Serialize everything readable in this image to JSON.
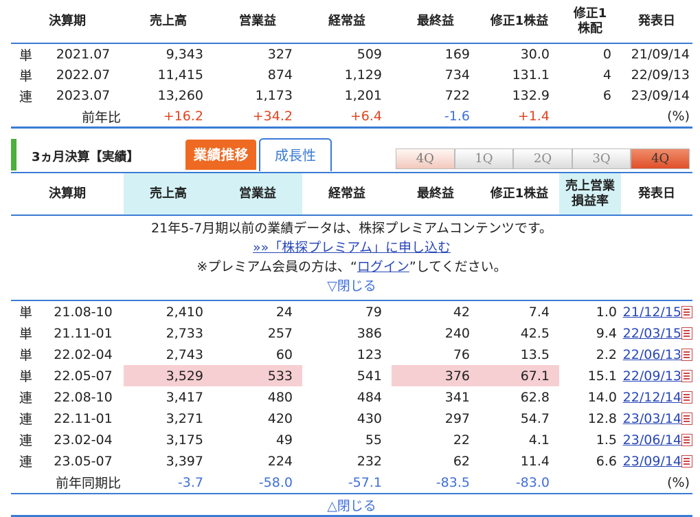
{
  "annual": {
    "headers": [
      "決算期",
      "売上高",
      "営業益",
      "経常益",
      "最終益",
      "修正1株益",
      "修正1株配",
      "発表日"
    ],
    "rows": [
      {
        "type": "単",
        "period": "2021.07",
        "sales": "9,343",
        "op": "327",
        "ord": "509",
        "net": "169",
        "eps": "30.0",
        "div": "0",
        "date": "21/09/14"
      },
      {
        "type": "単",
        "period": "2022.07",
        "sales": "11,415",
        "op": "874",
        "ord": "1,129",
        "net": "734",
        "eps": "131.1",
        "div": "4",
        "date": "22/09/13"
      },
      {
        "type": "連",
        "period": "2023.07",
        "sales": "13,260",
        "op": "1,173",
        "ord": "1,201",
        "net": "722",
        "eps": "132.9",
        "div": "6",
        "date": "23/09/14"
      }
    ],
    "yoy": {
      "label": "前年比",
      "sales": "+16.2",
      "op": "+34.2",
      "ord": "+6.4",
      "net": "-1.6",
      "eps": "+1.4",
      "unit": "(%)"
    }
  },
  "section": {
    "title": "3ヵ月決算【実績】",
    "tab_active": "業績推移",
    "tab_inactive": "成長性",
    "quarter_buttons": [
      "4Q",
      "1Q",
      "2Q",
      "3Q",
      "4Q"
    ]
  },
  "quarterly": {
    "headers": [
      "決算期",
      "売上高",
      "営業益",
      "経常益",
      "最終益",
      "修正1株益",
      "売上営業損益率",
      "発表日"
    ],
    "premium_msg": "21年5-7月期以前の業績データは、株探プレミアムコンテンツです。",
    "premium_link": "»»「株探プレミアム」に申し込む",
    "login_prefix": "※プレミアム会員の方は、“",
    "login_link": "ログイン",
    "login_suffix": "”してください。",
    "close_top": "▽閉じる",
    "rows": [
      {
        "type": "単",
        "period": "21.08-10",
        "sales": "2,410",
        "op": "24",
        "ord": "79",
        "net": "42",
        "eps": "7.4",
        "margin": "1.0",
        "date": "21/12/15"
      },
      {
        "type": "単",
        "period": "21.11-01",
        "sales": "2,733",
        "op": "257",
        "ord": "386",
        "net": "240",
        "eps": "42.5",
        "margin": "9.4",
        "date": "22/03/15"
      },
      {
        "type": "単",
        "period": "22.02-04",
        "sales": "2,743",
        "op": "60",
        "ord": "123",
        "net": "76",
        "eps": "13.5",
        "margin": "2.2",
        "date": "22/06/13"
      },
      {
        "type": "単",
        "period": "22.05-07",
        "sales": "3,529",
        "op": "533",
        "ord": "541",
        "net": "376",
        "eps": "67.1",
        "margin": "15.1",
        "date": "22/09/13"
      },
      {
        "type": "連",
        "period": "22.08-10",
        "sales": "3,417",
        "op": "480",
        "ord": "484",
        "net": "341",
        "eps": "62.8",
        "margin": "14.0",
        "date": "22/12/14"
      },
      {
        "type": "連",
        "period": "22.11-01",
        "sales": "3,271",
        "op": "420",
        "ord": "430",
        "net": "297",
        "eps": "54.7",
        "margin": "12.8",
        "date": "23/03/14"
      },
      {
        "type": "連",
        "period": "23.02-04",
        "sales": "3,175",
        "op": "49",
        "ord": "55",
        "net": "22",
        "eps": "4.1",
        "margin": "1.5",
        "date": "23/06/14"
      },
      {
        "type": "連",
        "period": "23.05-07",
        "sales": "3,397",
        "op": "224",
        "ord": "232",
        "net": "62",
        "eps": "11.4",
        "margin": "6.6",
        "date": "23/09/14"
      }
    ],
    "yoy": {
      "label": "前年同期比",
      "sales": "-3.7",
      "op": "-58.0",
      "ord": "-57.1",
      "net": "-83.5",
      "eps": "-83.0",
      "unit": "(%)"
    },
    "close_bottom": "△閉じる"
  },
  "colors": {
    "accent": "#3a7bd5",
    "orange": "#ee6a22",
    "green": "#4caf3f",
    "highlight": "#f6cfd2",
    "header_cyan": "#d4f2f6"
  }
}
